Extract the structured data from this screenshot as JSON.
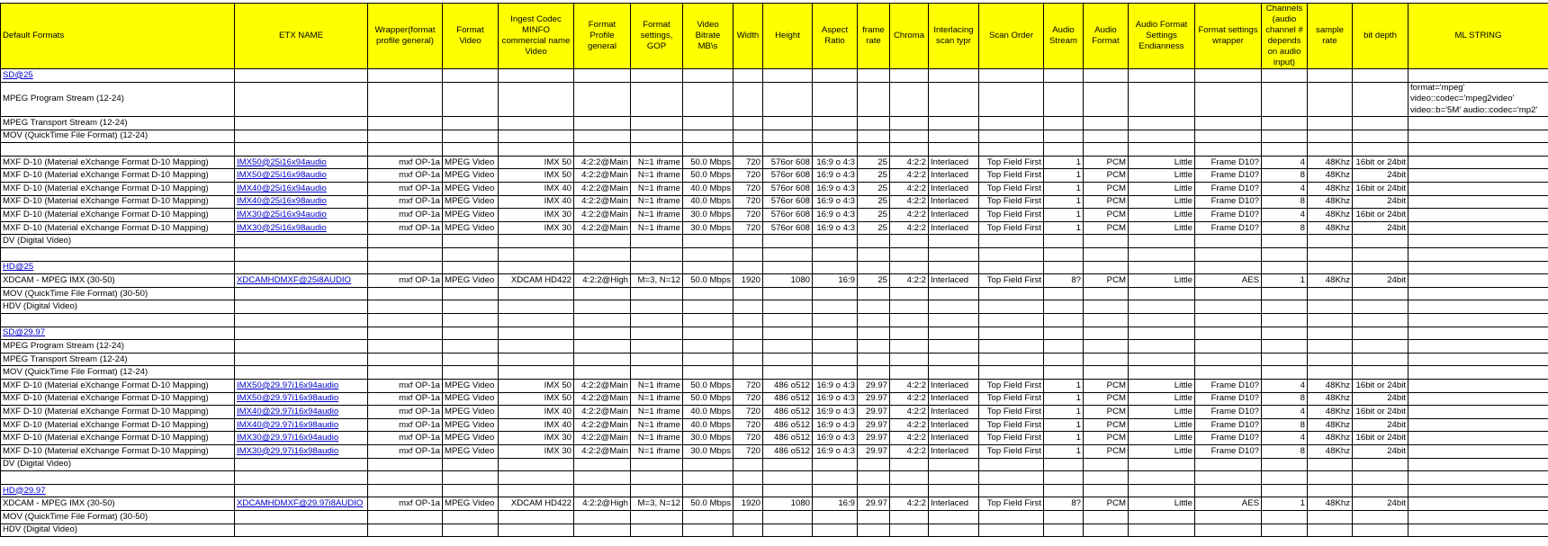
{
  "colors": {
    "header_bg": "#ffff00",
    "link": "#0000cc",
    "grid": "#000000"
  },
  "columns": [
    "Default Formats",
    "ETX NAME",
    "Wrapper(format profile general)",
    "Format Video",
    "Ingest Codec MINFO commercial name Video",
    "Format Profile general",
    "Format settings, GOP",
    "Video Bitrate MB\\s",
    "Width",
    "Height",
    "Aspect Ratio",
    "frame rate",
    "Chroma",
    "Interlacing scan typr",
    "Scan Order",
    "Audio Stream",
    "Audio Format",
    "Audio Format Settings Endianness",
    "Format settings wrapper",
    "Channels (audio channel # depends on audio input)",
    "sample rate",
    "bit depth",
    "ML STRING"
  ],
  "rows": [
    {
      "type": "section",
      "cells": [
        "SD@25"
      ]
    },
    {
      "type": "tall",
      "cells": [
        "MPEG Program Stream (12-24)",
        "",
        "",
        "",
        "",
        "",
        "",
        "",
        "",
        "",
        "",
        "",
        "",
        "",
        "",
        "",
        "",
        "",
        "",
        "",
        "",
        "",
        "format='mpeg' video::codec='mpeg2video' video::b='5M' audio::codec='mp2'"
      ]
    },
    {
      "cells": [
        "MPEG Transport Stream (12-24)"
      ]
    },
    {
      "cells": [
        "MOV (QuickTime File Format) (12-24)"
      ]
    },
    {
      "cells": [
        ""
      ]
    },
    {
      "cells": [
        "MXF D-10 (Material eXchange Format D-10 Mapping)",
        "IMX50@25i16x94audio",
        "mxf OP-1a",
        "MPEG Video",
        "IMX 50",
        "4:2:2@Main",
        "N=1 iframe",
        "50.0 Mbps",
        "720",
        "576or 608",
        "16:9 o 4:3",
        "25",
        "4:2:2",
        "Interlaced",
        "Top Field First",
        "1",
        "PCM",
        "Little",
        "Frame D10?",
        "4",
        "48Khz",
        "16bit or 24bit",
        ""
      ]
    },
    {
      "cells": [
        "MXF D-10 (Material eXchange Format D-10 Mapping)",
        "IMX50@25i16x98audio",
        "mxf OP-1a",
        "MPEG Video",
        "IMX 50",
        "4:2:2@Main",
        "N=1 iframe",
        "50.0 Mbps",
        "720",
        "576or 608",
        "16:9 o 4:3",
        "25",
        "4:2:2",
        "Interlaced",
        "Top Field First",
        "1",
        "PCM",
        "Little",
        "Frame D10?",
        "8",
        "48Khz",
        "24bit",
        ""
      ]
    },
    {
      "cells": [
        "MXF D-10 (Material eXchange Format D-10 Mapping)",
        "IMX40@25i16x94audio",
        "mxf OP-1a",
        "MPEG Video",
        "IMX 40",
        "4:2:2@Main",
        "N=1 iframe",
        "40.0 Mbps",
        "720",
        "576or 608",
        "16:9 o 4:3",
        "25",
        "4:2:2",
        "Interlaced",
        "Top Field First",
        "1",
        "PCM",
        "Little",
        "Frame D10?",
        "4",
        "48Khz",
        "16bit or 24bit",
        ""
      ]
    },
    {
      "cells": [
        "MXF D-10 (Material eXchange Format D-10 Mapping)",
        "IMX40@25i16x98audio",
        "mxf OP-1a",
        "MPEG Video",
        "IMX 40",
        "4:2:2@Main",
        "N=1 iframe",
        "40.0 Mbps",
        "720",
        "576or 608",
        "16:9 o 4:3",
        "25",
        "4:2:2",
        "Interlaced",
        "Top Field First",
        "1",
        "PCM",
        "Little",
        "Frame D10?",
        "8",
        "48Khz",
        "24bit",
        ""
      ]
    },
    {
      "cells": [
        "MXF D-10 (Material eXchange Format D-10 Mapping)",
        "IMX30@25i16x94audio",
        "mxf OP-1a",
        "MPEG Video",
        "IMX 30",
        "4:2:2@Main",
        "N=1 iframe",
        "30.0 Mbps",
        "720",
        "576or 608",
        "16:9 o 4:3",
        "25",
        "4:2:2",
        "Interlaced",
        "Top Field First",
        "1",
        "PCM",
        "Little",
        "Frame D10?",
        "4",
        "48Khz",
        "16bit or 24bit",
        ""
      ]
    },
    {
      "cells": [
        "MXF D-10 (Material eXchange Format D-10 Mapping)",
        "IMX30@25i16x98audio",
        "mxf OP-1a",
        "MPEG Video",
        "IMX 30",
        "4:2:2@Main",
        "N=1 iframe",
        "30.0 Mbps",
        "720",
        "576or 608",
        "16:9 o 4:3",
        "25",
        "4:2:2",
        "Interlaced",
        "Top Field First",
        "1",
        "PCM",
        "Little",
        "Frame D10?",
        "8",
        "48Khz",
        "24bit",
        ""
      ]
    },
    {
      "cells": [
        "DV (Digital Video)"
      ]
    },
    {
      "cells": [
        ""
      ]
    },
    {
      "type": "section",
      "cells": [
        "HD@25"
      ]
    },
    {
      "cells": [
        "XDCAM - MPEG IMX (30-50)",
        "XDCAMHDMXF@25i8AUDIO",
        "mxf OP-1a",
        "MPEG Video",
        "XDCAM HD422",
        "4:2:2@High",
        "M=3, N=12",
        "50.0 Mbps",
        "1920",
        "1080",
        "16:9",
        "25",
        "4:2:2",
        "Interlaced",
        "Top Field First",
        "8?",
        "PCM",
        "Little",
        "AES",
        "1",
        "48Khz",
        "24bit",
        ""
      ]
    },
    {
      "cells": [
        "MOV (QuickTime File Format) (30-50)"
      ]
    },
    {
      "cells": [
        "HDV (Digital Video)"
      ]
    },
    {
      "cells": [
        ""
      ]
    },
    {
      "type": "section",
      "cells": [
        "SD@29.97"
      ]
    },
    {
      "cells": [
        "MPEG Program Stream (12-24)"
      ]
    },
    {
      "cells": [
        "MPEG Transport Stream (12-24)"
      ]
    },
    {
      "cells": [
        "MOV (QuickTime File Format) (12-24)"
      ]
    },
    {
      "cells": [
        "MXF D-10 (Material eXchange Format D-10 Mapping)",
        "IMX50@29.97i16x94audio",
        "mxf OP-1a",
        "MPEG Video",
        "IMX 50",
        "4:2:2@Main",
        "N=1 iframe",
        "50.0 Mbps",
        "720",
        "486 o512",
        "16:9 o 4:3",
        "29.97",
        "4:2:2",
        "Interlaced",
        "Top Field First",
        "1",
        "PCM",
        "Little",
        "Frame D10?",
        "4",
        "48Khz",
        "16bit or 24bit",
        ""
      ]
    },
    {
      "cells": [
        "MXF D-10 (Material eXchange Format D-10 Mapping)",
        "IMX50@29.97i16x98audio",
        "mxf OP-1a",
        "MPEG Video",
        "IMX 50",
        "4:2:2@Main",
        "N=1 iframe",
        "50.0 Mbps",
        "720",
        "486 o512",
        "16:9 o 4:3",
        "29.97",
        "4:2:2",
        "Interlaced",
        "Top Field First",
        "1",
        "PCM",
        "Little",
        "Frame D10?",
        "8",
        "48Khz",
        "24bit",
        ""
      ]
    },
    {
      "cells": [
        "MXF D-10 (Material eXchange Format D-10 Mapping)",
        "IMX40@29.97i16x94audio",
        "mxf OP-1a",
        "MPEG Video",
        "IMX 40",
        "4:2:2@Main",
        "N=1 iframe",
        "40.0 Mbps",
        "720",
        "486 o512",
        "16:9 o 4:3",
        "29.97",
        "4:2:2",
        "Interlaced",
        "Top Field First",
        "1",
        "PCM",
        "Little",
        "Frame D10?",
        "4",
        "48Khz",
        "16bit or 24bit",
        ""
      ]
    },
    {
      "cells": [
        "MXF D-10 (Material eXchange Format D-10 Mapping)",
        "IMX40@29.97i16x98audio",
        "mxf OP-1a",
        "MPEG Video",
        "IMX 40",
        "4:2:2@Main",
        "N=1 iframe",
        "40.0 Mbps",
        "720",
        "486 o512",
        "16:9 o 4:3",
        "29.97",
        "4:2:2",
        "Interlaced",
        "Top Field First",
        "1",
        "PCM",
        "Little",
        "Frame D10?",
        "8",
        "48Khz",
        "24bit",
        ""
      ]
    },
    {
      "cells": [
        "MXF D-10 (Material eXchange Format D-10 Mapping)",
        "IMX30@29.97i16x94audio",
        "mxf OP-1a",
        "MPEG Video",
        "IMX 30",
        "4:2:2@Main",
        "N=1 iframe",
        "30.0 Mbps",
        "720",
        "486 o512",
        "16:9 o 4:3",
        "29.97",
        "4:2:2",
        "Interlaced",
        "Top Field First",
        "1",
        "PCM",
        "Little",
        "Frame D10?",
        "4",
        "48Khz",
        "16bit or 24bit",
        ""
      ]
    },
    {
      "cells": [
        "MXF D-10 (Material eXchange Format D-10 Mapping)",
        "IMX30@29.97i16x98audio",
        "mxf OP-1a",
        "MPEG Video",
        "IMX 30",
        "4:2:2@Main",
        "N=1 iframe",
        "30.0 Mbps",
        "720",
        "486 o512",
        "16:9 o 4:3",
        "29.97",
        "4:2:2",
        "Interlaced",
        "Top Field First",
        "1",
        "PCM",
        "Little",
        "Frame D10?",
        "8",
        "48Khz",
        "24bit",
        ""
      ]
    },
    {
      "cells": [
        "DV (Digital Video)"
      ]
    },
    {
      "cells": [
        ""
      ]
    },
    {
      "type": "section",
      "cells": [
        "HD@29.97"
      ]
    },
    {
      "cells": [
        "XDCAM - MPEG IMX (30-50)",
        "XDCAMHDMXF@29.97i8AUDIO",
        "mxf OP-1a",
        "MPEG Video",
        "XDCAM HD422",
        "4:2:2@High",
        "M=3, N=12",
        "50.0 Mbps",
        "1920",
        "1080",
        "16:9",
        "29.97",
        "4:2:2",
        "Interlaced",
        "Top Field First",
        "8?",
        "PCM",
        "Little",
        "AES",
        "1",
        "48Khz",
        "24bit",
        ""
      ]
    },
    {
      "cells": [
        "MOV (QuickTime File Format) (30-50)"
      ]
    },
    {
      "cells": [
        "HDV (Digital Video)"
      ]
    }
  ]
}
